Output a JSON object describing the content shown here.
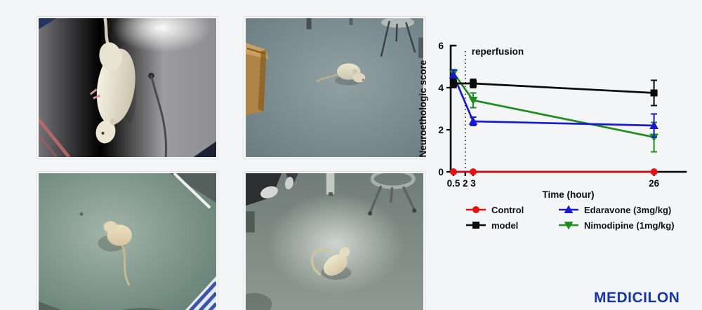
{
  "page": {
    "background": "#f4f5f7"
  },
  "branding": {
    "logo_text": "MEDICILON",
    "logo_color": "#1637a4"
  },
  "photos": [
    {
      "name": "rat-suspended-by-tail"
    },
    {
      "name": "rat-walking-on-clinic-floor-near-box"
    },
    {
      "name": "rat-on-teal-floor-top-view"
    },
    {
      "name": "rat-curled-on-floor-near-stool"
    }
  ],
  "chart_data": {
    "type": "line",
    "title": "",
    "xlabel": "Time (hour)",
    "ylabel": "Neuroethologic score",
    "xlim": [
      0,
      30
    ],
    "ylim": [
      0,
      6
    ],
    "xticks": [
      0.5,
      2,
      3,
      26
    ],
    "yticks": [
      0,
      2,
      4,
      6
    ],
    "grid": false,
    "annotation": {
      "text": "reperfusion",
      "x": 2,
      "style": "dotted-vertical-line"
    },
    "x": [
      0.5,
      3,
      26
    ],
    "series": [
      {
        "name": "Control",
        "color": "#e31112",
        "line_color": "#c40f10",
        "marker": "circle",
        "values": [
          0,
          0,
          0
        ],
        "errors": [
          0,
          0,
          0
        ]
      },
      {
        "name": "model",
        "color": "#0b0b0b",
        "line_color": "#0b0b0b",
        "marker": "square",
        "values": [
          4.2,
          4.2,
          3.75
        ],
        "errors": [
          0.2,
          0.2,
          0.6
        ]
      },
      {
        "name": "Edaravone (3mg/kg)",
        "color": "#1a1acd",
        "line_color": "#1a1acd",
        "marker": "triangle-up",
        "values": [
          4.6,
          2.4,
          2.2
        ],
        "errors": [
          0.25,
          0.2,
          0.55
        ]
      },
      {
        "name": "Nimodipine (1mg/kg)",
        "color": "#1e8c1e",
        "line_color": "#1e8c1e",
        "marker": "triangle-down",
        "values": [
          4.7,
          3.4,
          1.65
        ],
        "errors": [
          0.15,
          0.35,
          0.7
        ]
      }
    ],
    "legend": {
      "position": "bottom",
      "columns": 2,
      "order": [
        "Control",
        "Edaravone (3mg/kg)",
        "model",
        "Nimodipine (1mg/kg)"
      ]
    }
  }
}
